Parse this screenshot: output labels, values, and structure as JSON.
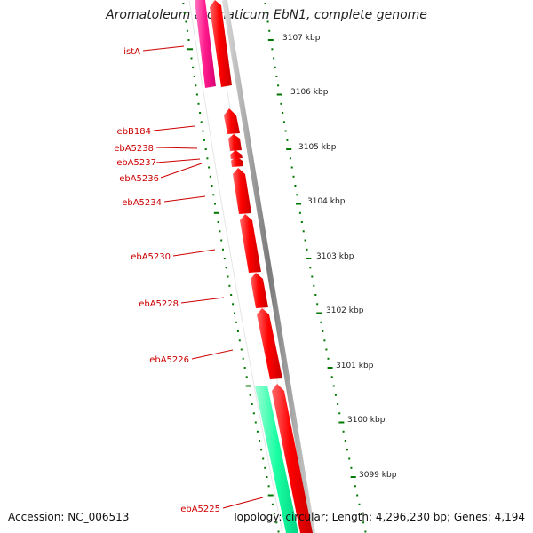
{
  "title": "Aromatoleum aromaticum EbN1, complete genome",
  "footer": {
    "accession": "Accession: NC_006513",
    "summary": "Topology: circular; Length: 4,296,230 bp; Genes: 4,194"
  },
  "colors": {
    "gene_forward": "#ff0000",
    "gene_highlight": "#ff1a8c",
    "gene_other": "#1affa3",
    "gene_label": "#cc0000",
    "backbone": "#888888",
    "tick": "#007700"
  },
  "scale_ticks": [
    {
      "kbp": 3107,
      "label": "3107 kbp"
    },
    {
      "kbp": 3106,
      "label": "3106 kbp"
    },
    {
      "kbp": 3105,
      "label": "3105 kbp"
    },
    {
      "kbp": 3104,
      "label": "3104 kbp"
    },
    {
      "kbp": 3103,
      "label": "3103 kbp"
    },
    {
      "kbp": 3102,
      "label": "3102 kbp"
    },
    {
      "kbp": 3101,
      "label": "3101 kbp"
    },
    {
      "kbp": 3100,
      "label": "3100 kbp"
    },
    {
      "kbp": 3099,
      "label": "3099 kbp"
    }
  ],
  "genes": [
    {
      "label": "istA"
    },
    {
      "label": "ebB184"
    },
    {
      "label": "ebA5238"
    },
    {
      "label": "ebA5237"
    },
    {
      "label": "ebA5236"
    },
    {
      "label": "ebA5234"
    },
    {
      "label": "ebA5230"
    },
    {
      "label": "ebA5228"
    },
    {
      "label": "ebA5226"
    },
    {
      "label": "ebA5225"
    }
  ]
}
